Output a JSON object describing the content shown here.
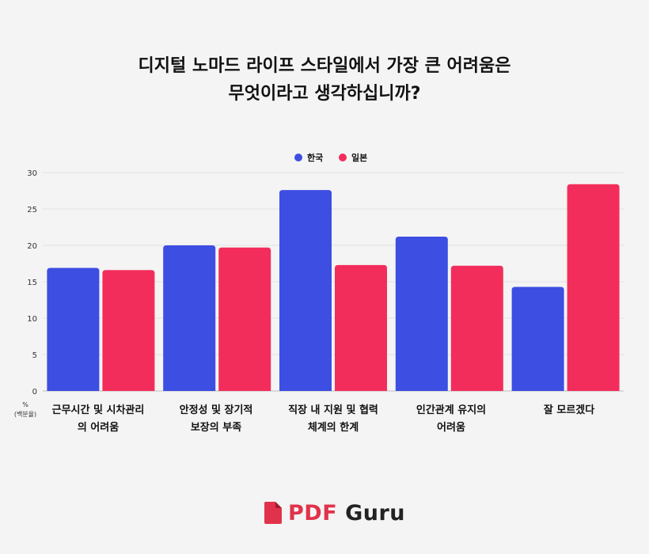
{
  "chart_data": {
    "type": "bar",
    "title_lines": [
      "디지털 노마드 라이프 스타일에서 가장 큰 어려움은",
      "무엇이라고 생각하십니까?"
    ],
    "unit_label": [
      "%",
      "(백분율)"
    ],
    "categories": [
      [
        "근무시간 및 시차관리",
        "의 어려움"
      ],
      [
        "안정성 및 장기적",
        "보장의 부족"
      ],
      [
        "직장 내 지원 및 협력",
        "체계의 한계"
      ],
      [
        "인간관계 유지의",
        "어려움"
      ],
      [
        "잘 모르겠다"
      ]
    ],
    "series": [
      {
        "name": "한국",
        "color": "#3d4ee2",
        "values": [
          16.9,
          20.0,
          27.6,
          21.2,
          14.3
        ]
      },
      {
        "name": "일본",
        "color": "#f32d5b",
        "values": [
          16.6,
          19.7,
          17.3,
          17.2,
          28.4
        ]
      }
    ],
    "ylim": [
      0,
      30
    ],
    "yticks": [
      0,
      5,
      10,
      15,
      20,
      25,
      30
    ],
    "legend": "top-center",
    "grid": true
  },
  "brand": {
    "icon": "pdf-file-icon",
    "pdf": "PDF",
    "guru": "Guru",
    "color": "#e0334b"
  }
}
